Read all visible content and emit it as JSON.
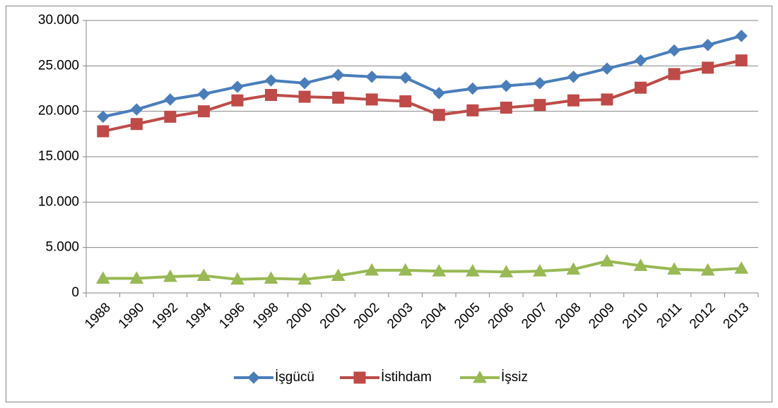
{
  "chart_data": {
    "type": "line",
    "categories": [
      "1988",
      "1990",
      "1992",
      "1994",
      "1996",
      "1998",
      "2000",
      "2001",
      "2002",
      "2003",
      "2004",
      "2005",
      "2006",
      "2007",
      "2008",
      "2009",
      "2010",
      "2011",
      "2012",
      "2013"
    ],
    "series": [
      {
        "name": "İşgücü",
        "color": "#4a7ebb",
        "marker": "diamond",
        "values": [
          19400,
          20200,
          21300,
          21900,
          22700,
          23400,
          23100,
          24000,
          23800,
          23700,
          22000,
          22500,
          22800,
          23100,
          23800,
          24700,
          25600,
          26700,
          27300,
          28300
        ]
      },
      {
        "name": "İstihdam",
        "color": "#be4b48",
        "marker": "square",
        "values": [
          17800,
          18600,
          19400,
          20000,
          21200,
          21800,
          21600,
          21500,
          21300,
          21100,
          19600,
          20100,
          20400,
          20700,
          21200,
          21300,
          22600,
          24100,
          24800,
          25600
        ]
      },
      {
        "name": "İşsiz",
        "color": "#98b954",
        "marker": "triangle",
        "values": [
          1600,
          1600,
          1800,
          1900,
          1500,
          1600,
          1500,
          1900,
          2500,
          2500,
          2400,
          2400,
          2300,
          2400,
          2600,
          3500,
          3000,
          2600,
          2500,
          2700
        ]
      }
    ],
    "ylim": [
      0,
      30000
    ],
    "yticks": [
      0,
      {
        "value": 5000,
        "label": "5.000"
      },
      {
        "value": 10000,
        "label": "10.000"
      },
      {
        "value": 15000,
        "label": "15.000"
      },
      {
        "value": 20000,
        "label": "20.000"
      },
      {
        "value": 25000,
        "label": "25.000"
      },
      {
        "value": 30000,
        "label": "30.000"
      }
    ],
    "grid": true,
    "legend": "bottom"
  }
}
